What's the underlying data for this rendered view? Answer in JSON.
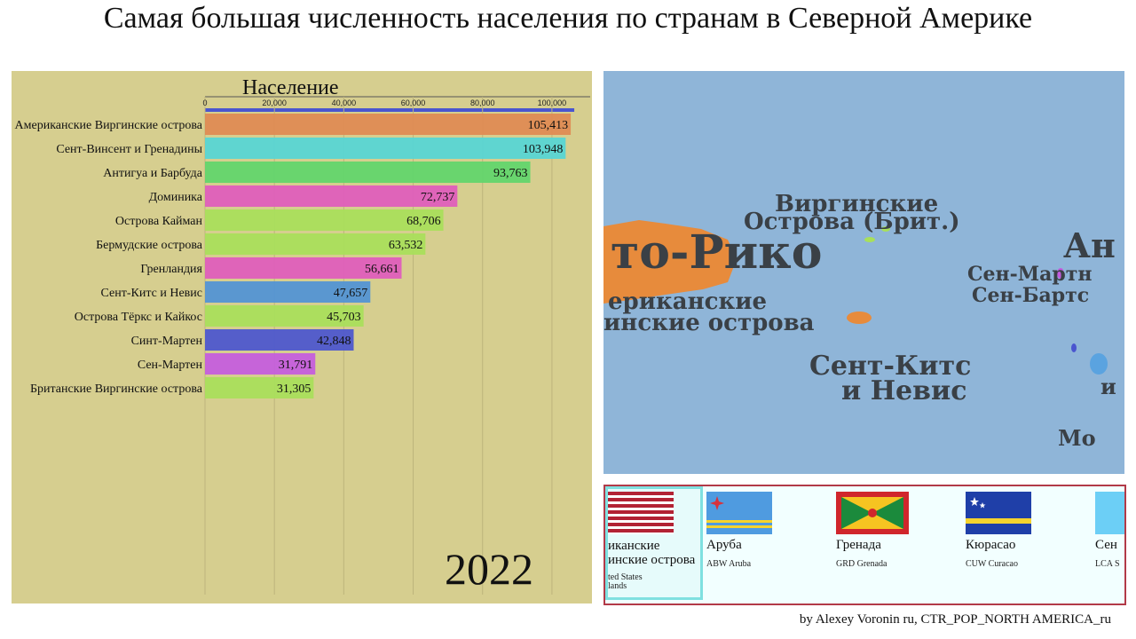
{
  "title": "Самая большая численность населения по странам в Северной Америке",
  "year": "2022",
  "credit": "by Alexey Voronin ru, CTR_POP_NORTH AMERICA_ru",
  "chart_data": {
    "type": "bar",
    "orientation": "horizontal",
    "title": "Население",
    "xlim": [
      0,
      110000
    ],
    "ticks": [
      0,
      20000,
      40000,
      60000,
      80000,
      100000
    ],
    "tick_labels": [
      "0",
      "20,000",
      "40,000",
      "60,000",
      "80,000",
      "100,000"
    ],
    "categories": [
      "Американские Виргинские острова",
      "Сент-Винсент и Гренадины",
      "Антигуа и Барбуда",
      "Доминика",
      "Острова Кайман",
      "Бермудские острова",
      "Гренландия",
      "Сент-Китс и Невис",
      "Острова Тёркс и Кайкос",
      "Синт-Мартен",
      "Сен-Мартен",
      "Британские Виргинские острова"
    ],
    "values": [
      105413,
      103948,
      93763,
      72737,
      68706,
      63532,
      56661,
      47657,
      45703,
      42848,
      31791,
      31305
    ],
    "value_labels": [
      "105,413",
      "103,948",
      "93,763",
      "72,737",
      "68,706",
      "63,532",
      "56,661",
      "47,657",
      "45,703",
      "42,848",
      "31,791",
      "31,305"
    ],
    "colors": [
      "#e08a52",
      "#55d6d6",
      "#5fd66b",
      "#e05bbd",
      "#a8e05a",
      "#a8e05a",
      "#e05bbd",
      "#4f93d6",
      "#a8e05a",
      "#4a55cf",
      "#c45be0",
      "#a8e05a"
    ],
    "total_bar_color": "#4a55cf",
    "grid": true
  },
  "map": {
    "labels": [
      {
        "id": "virgin-brit-1",
        "text": "Виргинские"
      },
      {
        "id": "virgin-brit-2",
        "text": "Острова (Брит.)"
      },
      {
        "id": "puerto-rico",
        "text": "то-Рико"
      },
      {
        "id": "amer-virgin-1",
        "text": "ериканские"
      },
      {
        "id": "amer-virgin-2",
        "text": "инские острова"
      },
      {
        "id": "an",
        "text": "Ан"
      },
      {
        "id": "sen-mart",
        "text": "Сен-Мартн"
      },
      {
        "id": "sen-bart",
        "text": "Сен-Бартс"
      },
      {
        "id": "skn-1",
        "text": "Сент-Китс"
      },
      {
        "id": "skn-2",
        "text": "и Невис"
      },
      {
        "id": "mon",
        "text": "Мо"
      },
      {
        "id": "i-right",
        "text": "и"
      }
    ]
  },
  "flags": [
    {
      "name": "иканские",
      "name2": "инские острова",
      "code": "ted States",
      "code2": "lands",
      "icon": "usvi-flag-icon"
    },
    {
      "name": "Аруба",
      "code": "ABW Aruba",
      "icon": "aruba-flag-icon"
    },
    {
      "name": "Гренада",
      "code": "GRD Grenada",
      "icon": "grenada-flag-icon"
    },
    {
      "name": "Кюрасао",
      "code": "CUW Curacao",
      "icon": "curacao-flag-icon"
    },
    {
      "name": "Сен",
      "code": "LCA S",
      "icon": "saint-lucia-flag-icon"
    }
  ]
}
